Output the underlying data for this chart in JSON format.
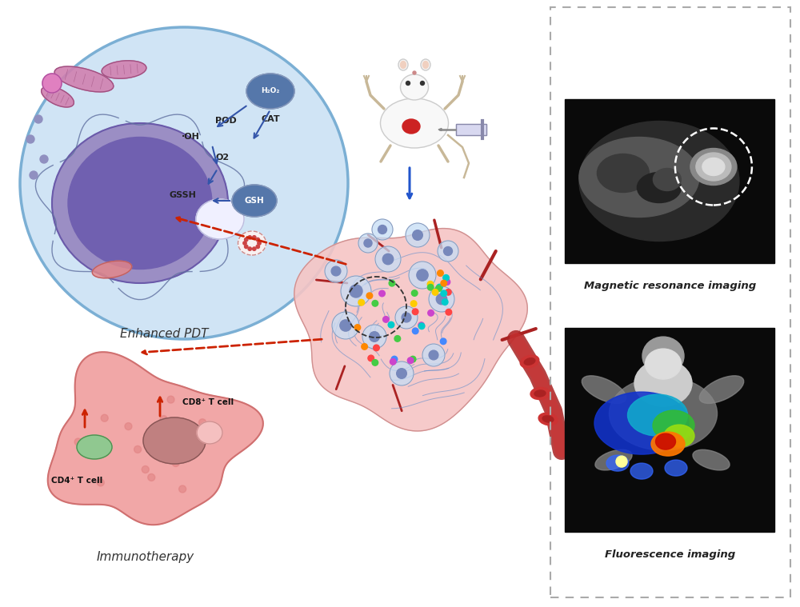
{
  "bg_color": "#ffffff",
  "mri_label": "Magnetic resonance imaging",
  "fl_label": "Fluorescence imaging",
  "enhanced_pdt_label": "Enhanced PDT",
  "immunotherapy_label": "Immunotherapy",
  "cell_label_h2o2": "H₂O₂",
  "cell_label_pod": "POD",
  "cell_label_cat": "CAT",
  "cell_label_oh": "·OH",
  "cell_label_o2": "O2",
  "cell_label_gssh": "GSSH",
  "cell_label_gsh": "GSH",
  "cell_label_cd4": "CD4⁺ T cell",
  "cell_label_cd8": "CD8⁺ T cell",
  "cell_outer_color": "#d0e4f5",
  "cell_border_color": "#7bafd4",
  "nucleus_color": "#9b8ec4",
  "nucleus_border_color": "#6a5aaa",
  "immune_cell_color": "#f0a0a0",
  "immune_cell_border": "#d07070",
  "cd8_color": "#c08080",
  "cd4_color": "#90c890",
  "tumor_color": "#f5c5c5",
  "h2o2_bubble_color": "#5577aa",
  "gsh_bubble_color": "#5577aa",
  "arrow_red_color": "#cc2200",
  "arrow_blue_color": "#2255cc"
}
